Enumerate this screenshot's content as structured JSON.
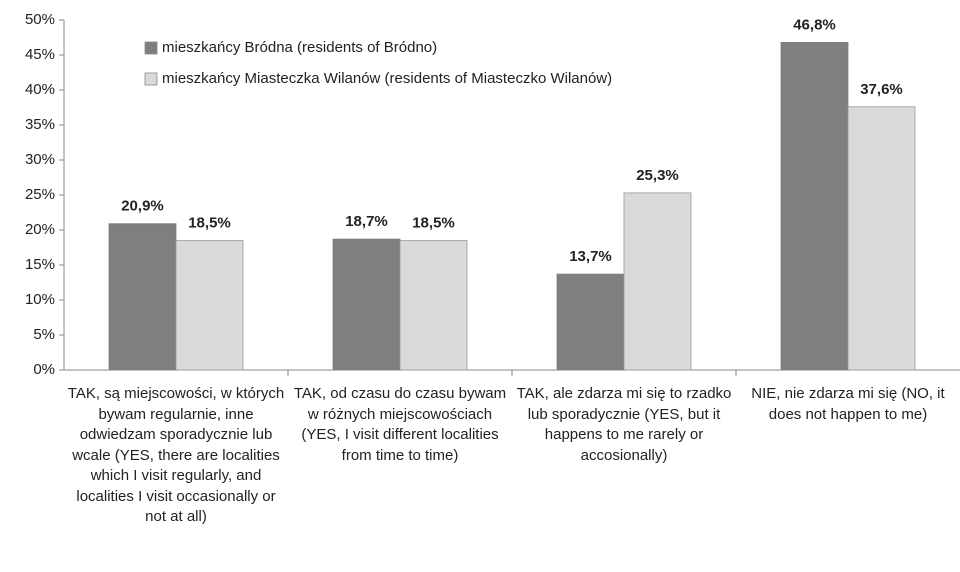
{
  "chart_data": {
    "type": "bar",
    "categories": [
      "TAK, są miejscowości, w których bywam regularnie, inne odwiedzam sporadycznie lub wcale (YES, there are localities which I visit regularly, and localities I visit occasionally or not at all)",
      "TAK, od czasu do czasu bywam w różnych miejscowościach (YES, I visit different localities from time to time)",
      "TAK, ale zdarza mi się to rzadko lub sporadycznie (YES, but it happens to me rarely or accosionally)",
      "NIE, nie zdarza mi się (NO, it does not happen to me)"
    ],
    "series": [
      {
        "name": "mieszkańcy Bródna (residents of Bródno)",
        "color": "#7f7f7f",
        "values": [
          20.9,
          18.7,
          13.7,
          46.8
        ],
        "value_labels": [
          "20,9%",
          "18,7%",
          "13,7%",
          "46,8%"
        ]
      },
      {
        "name": "mieszkańcy Miasteczka Wilanów (residents of Miasteczko Wilanów)",
        "color": "#d9d9d9",
        "values": [
          18.5,
          18.5,
          25.3,
          37.6
        ],
        "value_labels": [
          "18,5%",
          "18,5%",
          "25,3%",
          "37,6%"
        ]
      }
    ],
    "ylim": [
      0,
      50
    ],
    "yticks": [
      {
        "value": 0,
        "label": "0%"
      },
      {
        "value": 5,
        "label": "5%"
      },
      {
        "value": 10,
        "label": "10%"
      },
      {
        "value": 15,
        "label": "15%"
      },
      {
        "value": 20,
        "label": "20%"
      },
      {
        "value": 25,
        "label": "25%"
      },
      {
        "value": 30,
        "label": "30%"
      },
      {
        "value": 35,
        "label": "35%"
      },
      {
        "value": 40,
        "label": "40%"
      },
      {
        "value": 45,
        "label": "45%"
      },
      {
        "value": 50,
        "label": "50%"
      }
    ],
    "legend": "top-left",
    "grid": false
  }
}
